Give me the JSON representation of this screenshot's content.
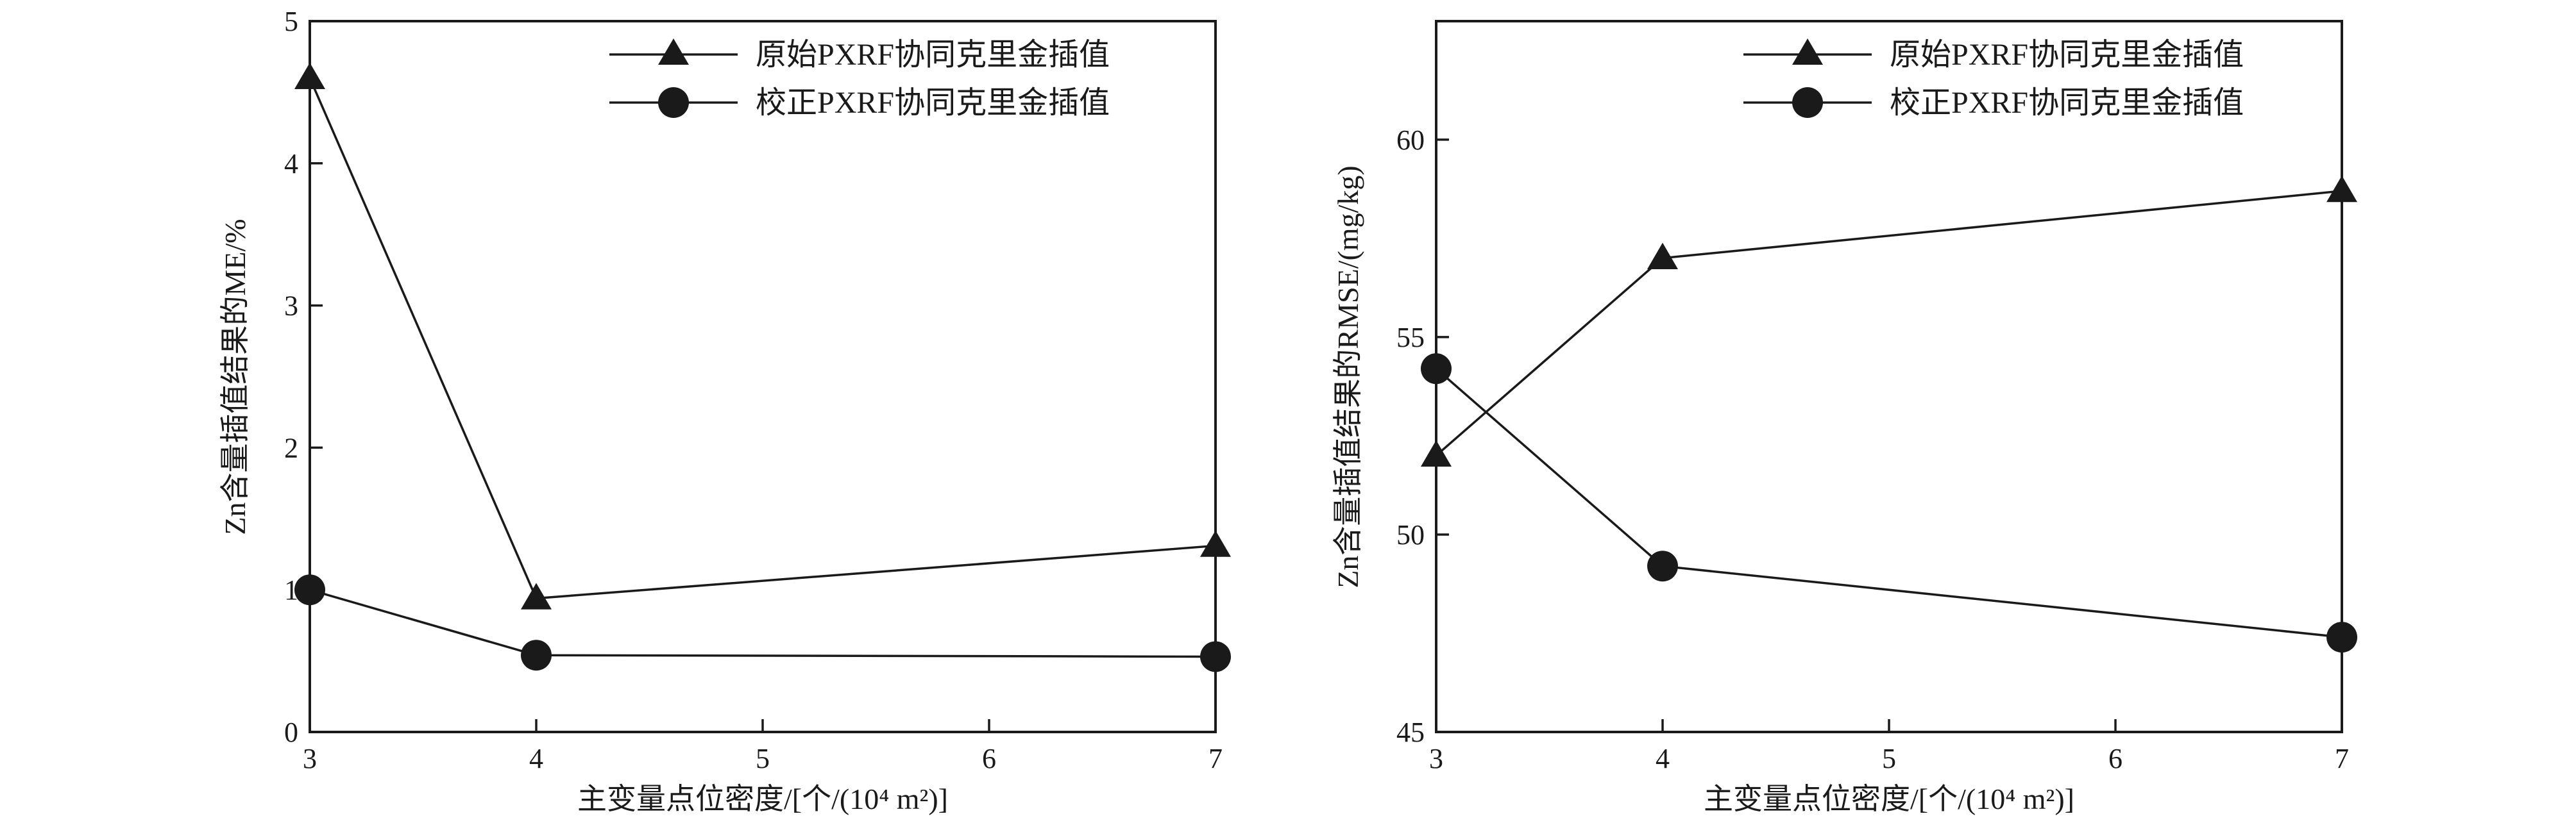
{
  "chart_data": [
    {
      "type": "line",
      "xlabel": "主变量点位密度/[个/(10⁴ m²)]",
      "ylabel": "Zn含量插值结果的ME/%",
      "x": [
        3,
        4,
        5,
        6,
        7
      ],
      "x_ticks": [
        "3",
        "4",
        "5",
        "6",
        "7"
      ],
      "xlim": [
        3,
        7
      ],
      "ylim": [
        0,
        5
      ],
      "y_ticks": [
        "0",
        "1",
        "2",
        "3",
        "4",
        "5"
      ],
      "grid": false,
      "legend_position": "top-right",
      "series": [
        {
          "name": "原始PXRF协同克里金插值",
          "marker": "triangle",
          "x": [
            3,
            4,
            7
          ],
          "values": [
            4.6,
            0.94,
            1.31
          ]
        },
        {
          "name": "校正PXRF协同克里金插值",
          "marker": "circle",
          "x": [
            3,
            4,
            7
          ],
          "values": [
            1.0,
            0.54,
            0.53
          ]
        }
      ]
    },
    {
      "type": "line",
      "xlabel": "主变量点位密度/[个/(10⁴ m²)]",
      "ylabel": "Zn含量插值结果的RMSE/(mg/kg)",
      "x": [
        3,
        4,
        5,
        6,
        7
      ],
      "x_ticks": [
        "3",
        "4",
        "5",
        "6",
        "7"
      ],
      "xlim": [
        3,
        7
      ],
      "ylim": [
        45,
        63
      ],
      "y_ticks": [
        "45",
        "50",
        "55",
        "60"
      ],
      "grid": false,
      "legend_position": "top-right",
      "series": [
        {
          "name": "原始PXRF协同克里金插值",
          "marker": "triangle",
          "x": [
            3,
            4,
            7
          ],
          "values": [
            52.0,
            57.0,
            58.7
          ]
        },
        {
          "name": "校正PXRF协同克里金插值",
          "marker": "circle",
          "x": [
            3,
            4,
            7
          ],
          "values": [
            54.2,
            49.2,
            47.4
          ]
        }
      ]
    }
  ]
}
